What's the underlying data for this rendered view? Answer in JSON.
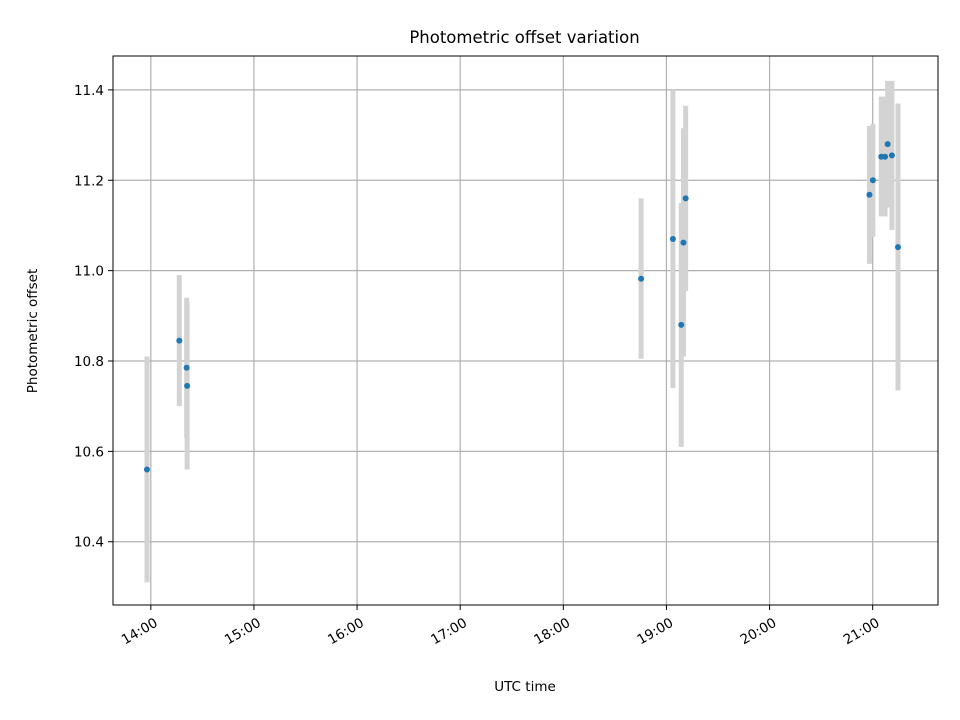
{
  "chart_data": {
    "type": "scatter",
    "title": "Photometric offset variation",
    "xlabel": "UTC time",
    "ylabel": "Photometric offset",
    "xlim": [
      "13:38",
      "21:38"
    ],
    "ylim": [
      10.26,
      11.475
    ],
    "x_ticks": [
      "14:00",
      "15:00",
      "16:00",
      "17:00",
      "18:00",
      "19:00",
      "20:00",
      "21:00"
    ],
    "y_ticks": [
      "10.4",
      "10.6",
      "10.8",
      "11.0",
      "11.2",
      "11.4"
    ],
    "grid": true,
    "legend": "none",
    "colors": {
      "points": "#1f77b4",
      "error_bars": "#d3d3d3",
      "grid": "#b0b0b0",
      "axes": "#000000"
    },
    "points": [
      {
        "x": "13:57:46",
        "y": 10.56,
        "y_low": 10.31,
        "y_high": 10.81
      },
      {
        "x": "14:16:34",
        "y": 10.845,
        "y_low": 10.7,
        "y_high": 10.99
      },
      {
        "x": "14:20:51",
        "y": 10.785,
        "y_low": 10.63,
        "y_high": 10.94
      },
      {
        "x": "14:21:08",
        "y": 10.745,
        "y_low": 10.56,
        "y_high": 10.93
      },
      {
        "x": "18:45:16",
        "y": 10.982,
        "y_low": 10.805,
        "y_high": 11.16
      },
      {
        "x": "19:03:46",
        "y": 11.07,
        "y_low": 10.74,
        "y_high": 11.4
      },
      {
        "x": "19:08:37",
        "y": 10.88,
        "y_low": 10.61,
        "y_high": 11.15
      },
      {
        "x": "19:09:54",
        "y": 11.062,
        "y_low": 10.81,
        "y_high": 11.315
      },
      {
        "x": "19:11:11",
        "y": 11.16,
        "y_low": 10.955,
        "y_high": 11.365
      },
      {
        "x": "20:58:06",
        "y": 11.168,
        "y_low": 11.015,
        "y_high": 11.32
      },
      {
        "x": "21:00:07",
        "y": 11.2,
        "y_low": 11.075,
        "y_high": 11.325
      },
      {
        "x": "21:05:00",
        "y": 11.252,
        "y_low": 11.12,
        "y_high": 11.385
      },
      {
        "x": "21:07:12",
        "y": 11.252,
        "y_low": 11.12,
        "y_high": 11.385
      },
      {
        "x": "21:08:43",
        "y": 11.28,
        "y_low": 11.14,
        "y_high": 11.42
      },
      {
        "x": "21:11:12",
        "y": 11.255,
        "y_low": 11.09,
        "y_high": 11.42
      },
      {
        "x": "21:14:43",
        "y": 11.052,
        "y_low": 10.735,
        "y_high": 11.37
      }
    ]
  }
}
